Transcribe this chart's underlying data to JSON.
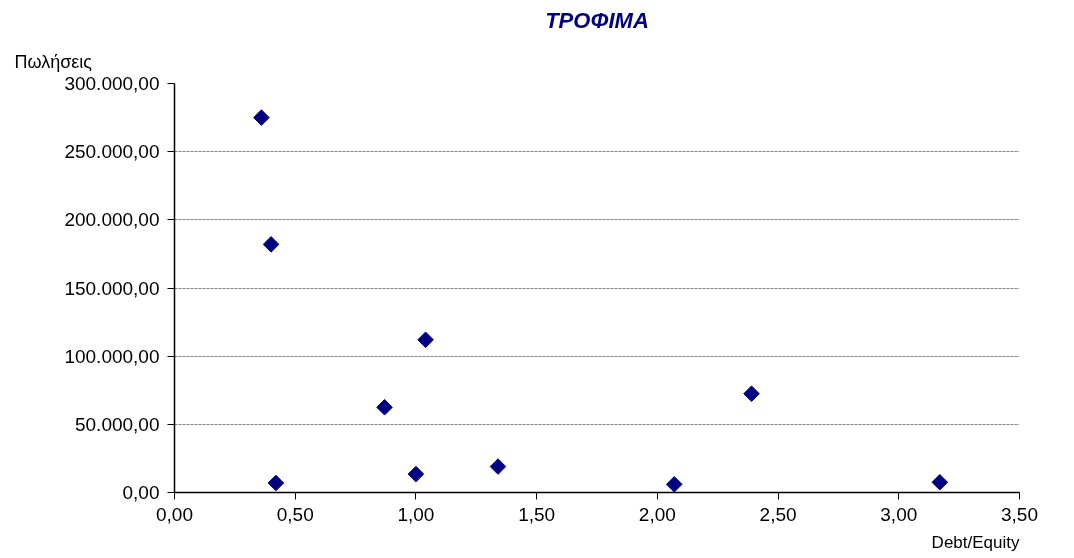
{
  "chart_data": {
    "type": "scatter",
    "title": "ΤΡΟΦΙΜΑ",
    "xlabel": "Debt/Equity",
    "ylabel": "Πωλήσεις",
    "x": [
      0.36,
      0.4,
      0.42,
      0.87,
      1.04,
      1.0,
      1.34,
      2.07,
      2.39,
      3.17
    ],
    "series": [
      {
        "color": "#000080",
        "values": [
          275000,
          182000,
          7000,
          62500,
          112000,
          13500,
          19000,
          6000,
          72500,
          7500
        ]
      }
    ],
    "marker": "diamond",
    "grid": "y",
    "xlim": [
      0,
      3.5
    ],
    "xticks": [
      {
        "value": 0,
        "label": "0,00"
      },
      {
        "value": 0.5,
        "label": "0,50"
      },
      {
        "value": 1,
        "label": "1,00"
      },
      {
        "value": 1.5,
        "label": "1,50"
      },
      {
        "value": 2,
        "label": "2,00"
      },
      {
        "value": 2.5,
        "label": "2,50"
      },
      {
        "value": 3,
        "label": "3,00"
      },
      {
        "value": 3.5,
        "label": "3,50"
      }
    ],
    "ylim": [
      0,
      300000
    ],
    "yticks": [
      {
        "value": 0,
        "label": "0,00"
      },
      {
        "value": 50000,
        "label": "50.000,00"
      },
      {
        "value": 100000,
        "label": "100.000,00"
      },
      {
        "value": 150000,
        "label": "150.000,00"
      },
      {
        "value": 200000,
        "label": "200.000,00"
      },
      {
        "value": 250000,
        "label": "250.000,00"
      },
      {
        "value": 300000,
        "label": "300.000,00"
      }
    ]
  }
}
